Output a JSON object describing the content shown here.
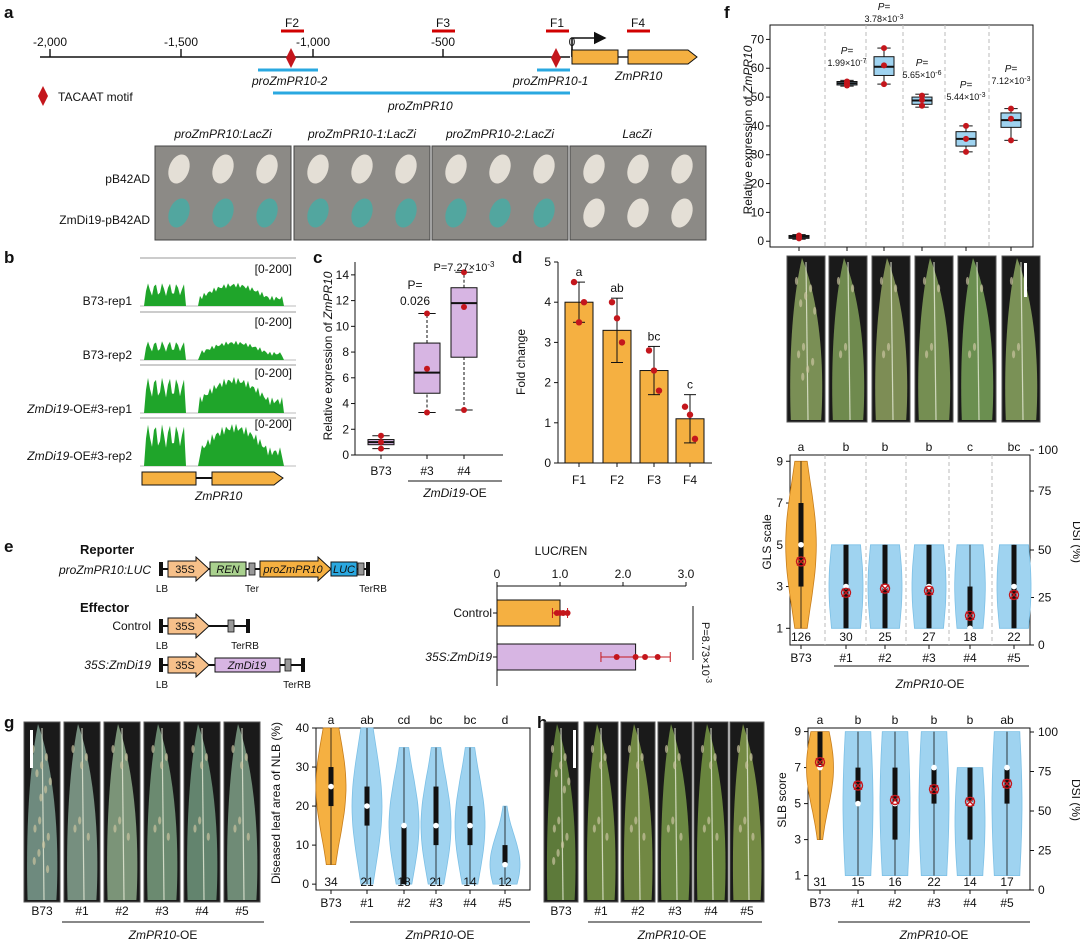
{
  "colors": {
    "orange": "#f5b041",
    "purple": "#d7b5e3",
    "blue": "#9fd3f0",
    "green": "#1fa52a",
    "red": "#c4161c",
    "line_blue": "#2aa8e0",
    "yeast": "#8c8a86",
    "leaf": "#6b8f46"
  },
  "panel_labels": {
    "a": "a",
    "b": "b",
    "c": "c",
    "d": "d",
    "e": "e",
    "f": "f",
    "g": "g",
    "h": "h"
  },
  "a": {
    "ticks": [
      "-2,000",
      "-1,500",
      "-1,000",
      "-500",
      "0"
    ],
    "fragments": [
      "F2",
      "F3",
      "F1",
      "F4"
    ],
    "promoters": [
      "proZmPR10-2",
      "proZmPR10-1",
      "proZmPR10"
    ],
    "gene": "ZmPR10",
    "motif_legend": "TACAAT motif",
    "yeast_columns": [
      "proZmPR10:LacZi",
      "proZmPR10-1:LacZi",
      "proZmPR10-2:LacZi",
      "LacZi"
    ],
    "yeast_rows": [
      "pB42AD",
      "ZmDi19-pB42AD"
    ]
  },
  "b": {
    "tracks": [
      {
        "name": "B73-rep1",
        "range": "[0-200]"
      },
      {
        "name": "B73-rep2",
        "range": "[0-200]"
      },
      {
        "name_italic": "ZmDi19",
        "name_rest": "-OE#3-rep1",
        "range": "[0-200]"
      },
      {
        "name_italic": "ZmDi19",
        "name_rest": "-OE#3-rep2",
        "range": "[0-200]"
      }
    ],
    "gene": "ZmPR10"
  },
  "c": {
    "ylabel": "Relative expression of",
    "ylabel_gene": "ZmPR10",
    "yticks": [
      "0",
      "2",
      "4",
      "6",
      "8",
      "10",
      "12",
      "14"
    ],
    "categories": [
      "B73",
      "#3",
      "#4"
    ],
    "p_top": "P=",
    "p3": "0.026",
    "p4": "P=7.27×10",
    "p4_exp": "-3",
    "group_gene": "ZmDi19",
    "group_rest": "-OE"
  },
  "d": {
    "ylabel": "Fold change",
    "yticks": [
      "0",
      "1",
      "2",
      "3",
      "4",
      "5"
    ],
    "categories": [
      "F1",
      "F2",
      "F3",
      "F4"
    ],
    "letters": [
      "a",
      "ab",
      "bc",
      "c"
    ]
  },
  "e": {
    "reporter": "Reporter",
    "reporter_name": "proZmPR10:LUC",
    "effector": "Effector",
    "control": "Control",
    "zmdi19": "35S:ZmDi19",
    "parts": {
      "p35s": "35S",
      "ren": "REN",
      "pro": "proZmPR10",
      "luc": "LUC",
      "lb": "LB",
      "ter": "Ter",
      "terrb": "TerRB",
      "zmdi19": "ZmDi19"
    },
    "axis_title": "LUC/REN",
    "xticks": [
      "0",
      "1.0",
      "2.0",
      "3.0"
    ],
    "categories": [
      "Control",
      "35S:ZmDi19"
    ],
    "pval": "P=8.73×10",
    "pval_exp": "-3"
  },
  "f": {
    "ylabel": "Relative expression of",
    "ylabel_gene": "ZmPR10",
    "yticks": [
      "0",
      "10",
      "20",
      "30",
      "40",
      "50",
      "60",
      "70"
    ],
    "pvals": [
      {
        "base": "1.99×10",
        "exp": "-7"
      },
      {
        "base": "3.78×10",
        "exp": "-3"
      },
      {
        "base": "5.65×10",
        "exp": "-6"
      },
      {
        "base": "5.44×10",
        "exp": "-3"
      },
      {
        "base": "7.12×10",
        "exp": "-3"
      }
    ],
    "p_prefix": "P=",
    "violin_letters": [
      "a",
      "b",
      "b",
      "b",
      "c",
      "bc"
    ],
    "gls_label": "GLS scale",
    "gls_ticks": [
      "1",
      "3",
      "5",
      "7",
      "9"
    ],
    "dsi_label": "DSI (%)",
    "dsi_ticks": [
      "0",
      "25",
      "50",
      "75",
      "100"
    ],
    "counts": [
      "126",
      "30",
      "25",
      "27",
      "18",
      "22"
    ],
    "categories": [
      "B73",
      "#1",
      "#2",
      "#3",
      "#4",
      "#5"
    ],
    "group_gene": "ZmPR10",
    "group_rest": "-OE"
  },
  "g": {
    "photo_labels": [
      "B73",
      "#1",
      "#2",
      "#3",
      "#4",
      "#5"
    ],
    "group_gene": "ZmPR10",
    "group_rest": "-OE",
    "ylabel": "Diseased leaf area of NLB (%)",
    "yticks": [
      "0",
      "10",
      "20",
      "30",
      "40"
    ],
    "letters": [
      "a",
      "ab",
      "cd",
      "bc",
      "bc",
      "d"
    ],
    "counts": [
      "34",
      "21",
      "18",
      "21",
      "14",
      "12"
    ],
    "categories": [
      "B73",
      "#1",
      "#2",
      "#3",
      "#4",
      "#5"
    ]
  },
  "h": {
    "photo_labels": [
      "B73",
      "#1",
      "#2",
      "#3",
      "#4",
      "#5"
    ],
    "group_gene": "ZmPR10",
    "group_rest": "-OE",
    "ylabel": "SLB score",
    "dsi_label": "DSI (%)",
    "yticks": [
      "1",
      "3",
      "5",
      "7",
      "9"
    ],
    "dsi_ticks": [
      "0",
      "25",
      "50",
      "75",
      "100"
    ],
    "letters": [
      "a",
      "b",
      "b",
      "b",
      "b",
      "ab"
    ],
    "counts": [
      "31",
      "15",
      "16",
      "22",
      "14",
      "17"
    ],
    "categories": [
      "B73",
      "#1",
      "#2",
      "#3",
      "#4",
      "#5"
    ]
  },
  "chart_data": [
    {
      "type": "box",
      "panel": "c",
      "title": "",
      "ylabel": "Relative expression of ZmPR10",
      "ylim": [
        0,
        15
      ],
      "categories": [
        "B73",
        "#3",
        "#4"
      ],
      "series": [
        {
          "name": "B73",
          "q1": 0.8,
          "median": 1.0,
          "q3": 1.2,
          "whisker_low": 0.5,
          "whisker_high": 1.5,
          "points": [
            0.5,
            1.0,
            1.5
          ]
        },
        {
          "name": "#3",
          "q1": 4.8,
          "median": 6.4,
          "q3": 8.7,
          "whisker_low": 3.3,
          "whisker_high": 11.0,
          "points": [
            3.3,
            6.7,
            11.0
          ]
        },
        {
          "name": "#4",
          "q1": 7.6,
          "median": 11.8,
          "q3": 13.0,
          "whisker_low": 3.5,
          "whisker_high": 14.2,
          "points": [
            3.5,
            11.5,
            14.2
          ]
        }
      ]
    },
    {
      "type": "bar",
      "panel": "d",
      "ylabel": "Fold change",
      "ylim": [
        0,
        5
      ],
      "categories": [
        "F1",
        "F2",
        "F3",
        "F4"
      ],
      "values": [
        4.0,
        3.3,
        2.3,
        1.1
      ],
      "errors": [
        0.5,
        0.8,
        0.6,
        0.6
      ],
      "points": [
        [
          4.5,
          3.5,
          4.0
        ],
        [
          4.0,
          3.6,
          3.0
        ],
        [
          2.8,
          2.3,
          1.8
        ],
        [
          1.4,
          1.2,
          0.6
        ]
      ]
    },
    {
      "type": "bar",
      "panel": "e",
      "orientation": "horizontal",
      "xlabel": "LUC/REN",
      "xlim": [
        0,
        3
      ],
      "categories": [
        "Control",
        "35S:ZmDi19"
      ],
      "values": [
        1.0,
        2.2
      ],
      "errors": [
        0.12,
        0.55
      ],
      "points": [
        [
          0.95,
          1.0,
          1.05,
          1.12
        ],
        [
          1.9,
          2.2,
          2.35,
          2.55
        ]
      ]
    },
    {
      "type": "box",
      "panel": "f",
      "ylabel": "Relative expression of ZmPR10",
      "ylim": [
        0,
        70
      ],
      "categories": [
        "B73",
        "#1",
        "#2",
        "#3",
        "#4",
        "#5"
      ],
      "series": [
        {
          "q1": 1.0,
          "median": 1.5,
          "q3": 2.0,
          "whisker_low": 0.7,
          "whisker_high": 2.3,
          "points": [
            1.0,
            1.5,
            2.0
          ]
        },
        {
          "q1": 54.2,
          "median": 54.8,
          "q3": 55.4,
          "whisker_low": 53.8,
          "whisker_high": 55.8,
          "points": [
            54.0,
            54.6,
            55.4
          ]
        },
        {
          "q1": 57.5,
          "median": 60.5,
          "q3": 64.0,
          "whisker_low": 54.5,
          "whisker_high": 67.0,
          "points": [
            54.5,
            61.0,
            67.0
          ]
        },
        {
          "q1": 47.5,
          "median": 48.8,
          "q3": 50.0,
          "whisker_low": 46.5,
          "whisker_high": 51.0,
          "points": [
            47.0,
            49.0,
            50.5
          ]
        },
        {
          "q1": 33.0,
          "median": 35.5,
          "q3": 38.0,
          "whisker_low": 31.0,
          "whisker_high": 40.0,
          "points": [
            31.0,
            35.5,
            40.0
          ]
        },
        {
          "q1": 39.5,
          "median": 42.0,
          "q3": 44.5,
          "whisker_low": 35.0,
          "whisker_high": 46.0,
          "points": [
            35.0,
            42.5,
            46.0
          ]
        }
      ]
    },
    {
      "type": "violin",
      "panel": "f",
      "ylabel": "GLS scale",
      "ylim": [
        1,
        9
      ],
      "categories": [
        "B73",
        "#1",
        "#2",
        "#3",
        "#4",
        "#5"
      ],
      "ranges": [
        [
          1,
          9
        ],
        [
          1,
          5
        ],
        [
          1,
          5
        ],
        [
          1,
          5
        ],
        [
          1,
          5
        ],
        [
          1,
          5
        ]
      ],
      "medians": [
        5,
        3,
        3,
        3,
        1,
        3
      ],
      "iqr": [
        [
          3,
          7
        ],
        [
          1,
          5
        ],
        [
          1,
          5
        ],
        [
          1,
          5
        ],
        [
          1,
          3
        ],
        [
          1,
          5
        ]
      ],
      "means": [
        4.2,
        2.7,
        2.9,
        2.8,
        1.6,
        2.6
      ],
      "widths": [
        0.9,
        1,
        1,
        1,
        0.9,
        1
      ]
    },
    {
      "type": "violin",
      "panel": "g",
      "ylabel": "Diseased leaf area of NLB (%)",
      "ylim": [
        0,
        40
      ],
      "categories": [
        "B73",
        "#1",
        "#2",
        "#3",
        "#4",
        "#5"
      ],
      "ranges": [
        [
          5,
          40
        ],
        [
          0,
          40
        ],
        [
          0,
          35
        ],
        [
          0,
          35
        ],
        [
          0,
          35
        ],
        [
          0,
          20
        ]
      ],
      "medians": [
        25,
        20,
        15,
        15,
        15,
        5
      ],
      "iqr": [
        [
          20,
          30
        ],
        [
          15,
          25
        ],
        [
          0,
          15
        ],
        [
          10,
          25
        ],
        [
          10,
          20
        ],
        [
          5,
          10
        ]
      ],
      "widths": [
        1,
        1,
        1,
        1,
        1,
        1
      ]
    },
    {
      "type": "violin",
      "panel": "h",
      "ylabel": "SLB score",
      "ylim": [
        1,
        9
      ],
      "categories": [
        "B73",
        "#1",
        "#2",
        "#3",
        "#4",
        "#5"
      ],
      "ranges": [
        [
          3,
          9
        ],
        [
          1,
          9
        ],
        [
          1,
          9
        ],
        [
          1,
          9
        ],
        [
          1,
          7
        ],
        [
          1,
          9
        ]
      ],
      "medians": [
        7,
        5,
        5,
        7,
        5,
        7
      ],
      "iqr": [
        [
          7,
          9
        ],
        [
          5,
          7
        ],
        [
          3,
          7
        ],
        [
          5,
          7
        ],
        [
          3,
          7
        ],
        [
          5,
          7
        ]
      ],
      "means": [
        7.3,
        6.0,
        5.2,
        5.8,
        5.1,
        6.1
      ],
      "widths": [
        0.9,
        1,
        1,
        1,
        1,
        1
      ]
    }
  ]
}
